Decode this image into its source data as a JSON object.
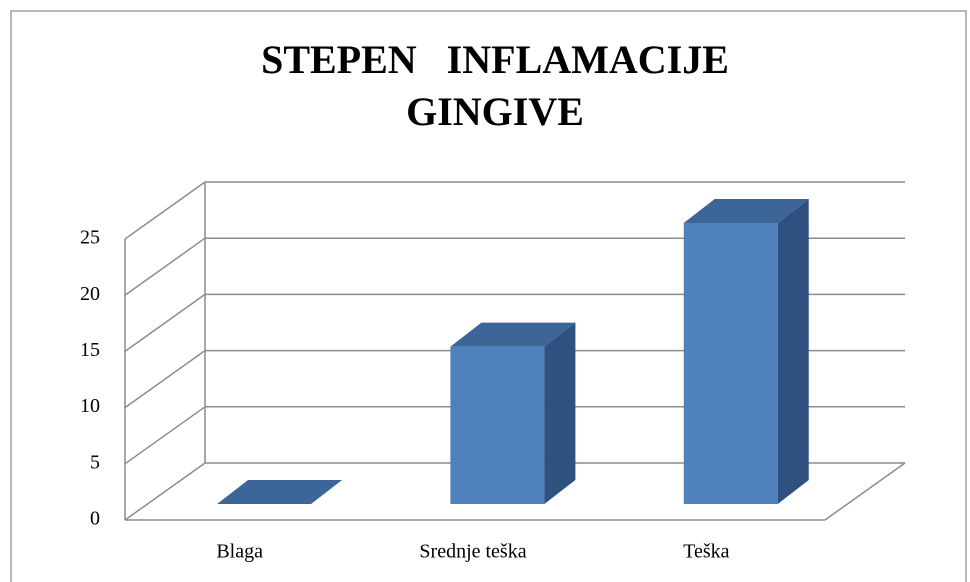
{
  "chart_data": {
    "type": "bar3d",
    "title": [
      "STEPEN   INFLAMACIJE",
      "GINGIVE"
    ],
    "categories": [
      "Blaga",
      "Srednje teška",
      "Teška"
    ],
    "values": [
      0,
      14,
      25
    ],
    "color": "#4f81bd",
    "ylim": [
      0,
      25
    ],
    "yticks": [
      0,
      5,
      10,
      15,
      20,
      25
    ],
    "grid": true
  }
}
